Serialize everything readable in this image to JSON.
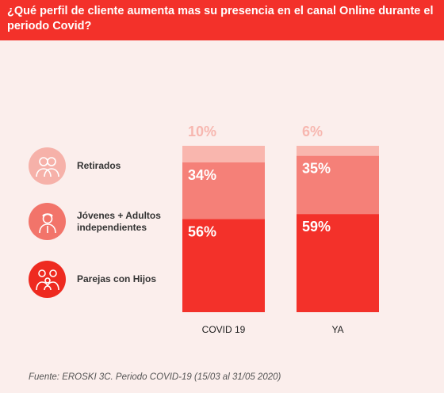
{
  "header": {
    "title": "¿Qué perfil de cliente aumenta mas su presencia en el canal Online durante el periodo Covid?"
  },
  "legend": [
    {
      "label": "Retirados",
      "icon": "elderly-couple-icon",
      "color": "#f7b5ad"
    },
    {
      "label": "Jóvenes + Adultos independientes",
      "icon": "young-adult-icon",
      "color": "#f2756b"
    },
    {
      "label": "Parejas con Hijos",
      "icon": "family-icon",
      "color": "#ee2b22"
    }
  ],
  "chart_data": {
    "type": "bar",
    "stacked": true,
    "categories": [
      "COVID 19",
      "YA"
    ],
    "series": [
      {
        "name": "Parejas con Hijos",
        "values": [
          56,
          59
        ],
        "labels": [
          "56%",
          "59%"
        ],
        "color": "#f3312a",
        "label_color": "#ffffff"
      },
      {
        "name": "Jóvenes + Adultos independientes",
        "values": [
          34,
          35
        ],
        "labels": [
          "34%",
          "35%"
        ],
        "color": "#f58078",
        "label_color": "#ffffff"
      },
      {
        "name": "Retirados",
        "values": [
          10,
          6
        ],
        "labels": [
          "10%",
          "6%"
        ],
        "color": "#f9b6ae",
        "label_color": "#f7b7b0"
      }
    ],
    "ylim": [
      0,
      100
    ]
  },
  "footer": {
    "source": "Fuente: EROSKI 3C. Periodo COVID-19 (15/03 al 31/05 2020)"
  }
}
